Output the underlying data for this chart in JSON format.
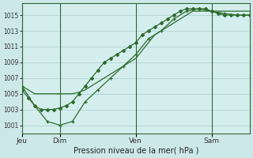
{
  "xlabel": "Pression niveau de la mer( hPa )",
  "bg_color": "#cce8e8",
  "plot_bg_color": "#d4eeee",
  "grid_color": "#aacccc",
  "line_color": "#2d6b2d",
  "ylim": [
    1000.0,
    1016.5
  ],
  "yticks": [
    1001,
    1003,
    1005,
    1007,
    1009,
    1011,
    1013,
    1015
  ],
  "day_labels": [
    "Jeu",
    "Dim",
    "Ven",
    "Sam"
  ],
  "day_positions": [
    0,
    36,
    108,
    180
  ],
  "xlim": [
    0,
    216
  ],
  "series1_x": [
    0,
    6,
    12,
    18,
    24,
    30,
    36,
    42,
    48,
    54,
    60,
    66,
    72,
    78,
    84,
    90,
    96,
    102,
    108,
    114,
    120,
    126,
    132,
    138,
    144,
    150,
    156,
    162,
    168,
    174,
    180,
    186,
    192,
    198,
    204,
    210,
    216
  ],
  "series1_y": [
    1006.0,
    1005.5,
    1005.0,
    1005.0,
    1005.0,
    1005.0,
    1005.0,
    1005.0,
    1005.0,
    1005.2,
    1005.5,
    1006.0,
    1006.5,
    1007.0,
    1007.5,
    1008.0,
    1008.5,
    1009.0,
    1009.5,
    1010.5,
    1011.5,
    1012.5,
    1013.0,
    1013.5,
    1014.0,
    1014.5,
    1015.0,
    1015.5,
    1015.5,
    1015.5,
    1015.5,
    1015.5,
    1015.5,
    1015.5,
    1015.5,
    1015.5,
    1015.5
  ],
  "series2_x": [
    0,
    6,
    12,
    18,
    24,
    30,
    36,
    42,
    48,
    54,
    60,
    66,
    72,
    78,
    84,
    90,
    96,
    102,
    108,
    114,
    120,
    126,
    132,
    138,
    144,
    150,
    156,
    162,
    168,
    174,
    180,
    186,
    192,
    198,
    204,
    210,
    216
  ],
  "series2_y": [
    1005.5,
    1004.5,
    1003.5,
    1003.0,
    1003.0,
    1003.0,
    1003.2,
    1003.5,
    1004.0,
    1005.0,
    1006.0,
    1007.0,
    1008.0,
    1009.0,
    1009.5,
    1010.0,
    1010.5,
    1011.0,
    1011.5,
    1012.5,
    1013.0,
    1013.5,
    1014.0,
    1014.5,
    1015.0,
    1015.5,
    1015.8,
    1015.8,
    1015.8,
    1015.8,
    1015.5,
    1015.2,
    1015.0,
    1015.0,
    1015.0,
    1015.0,
    1015.0
  ],
  "series3_x": [
    0,
    12,
    24,
    36,
    48,
    60,
    72,
    84,
    96,
    108,
    120,
    132,
    144,
    156,
    168,
    180,
    192,
    204,
    216
  ],
  "series3_y": [
    1006.0,
    1003.5,
    1001.5,
    1001.0,
    1001.5,
    1004.0,
    1005.5,
    1007.0,
    1008.5,
    1010.0,
    1012.0,
    1013.0,
    1014.5,
    1015.5,
    1015.8,
    1015.5,
    1015.2,
    1015.0,
    1015.0
  ]
}
